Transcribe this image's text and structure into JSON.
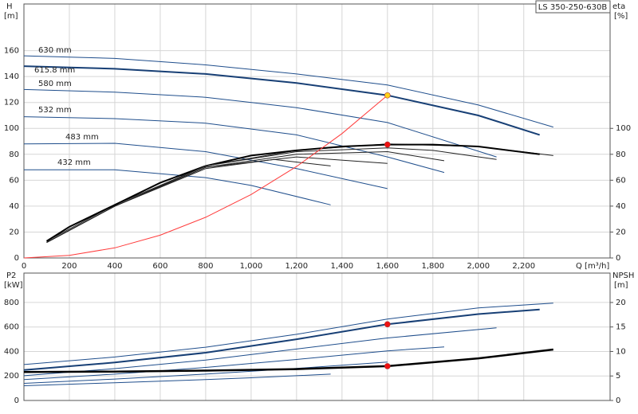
{
  "chart_data": [
    {
      "type": "line",
      "title": "LS 350-250-630B",
      "xlabel": "Q [m³/h]",
      "ylabel": "H",
      "yunit": "[m]",
      "y2label": "eta",
      "y2unit": "[%]",
      "xlim": [
        0,
        2580
      ],
      "xticks": [
        0,
        200,
        400,
        600,
        800,
        {
          "value": 1000,
          "label": "1,000"
        },
        {
          "value": 1200,
          "label": "1,200"
        },
        {
          "value": 1400,
          "label": "1,400"
        },
        {
          "value": 1600,
          "label": "1,600"
        },
        {
          "value": 1800,
          "label": "1,800"
        },
        {
          "value": 2000,
          "label": "2,000"
        },
        {
          "value": 2200,
          "label": "2,200"
        }
      ],
      "ylim": [
        0,
        196
      ],
      "yticks": [
        0,
        20,
        40,
        60,
        80,
        100,
        120,
        140,
        160
      ],
      "y2lim": [
        0,
        196
      ],
      "y2ticks": [
        0,
        20,
        40,
        60,
        80,
        100
      ],
      "grid": true,
      "series": [
        {
          "name": "630 mm",
          "color": "#1f4e8c",
          "x": [
            0,
            400,
            800,
            1200,
            1600,
            2000,
            2330
          ],
          "values": [
            156,
            154,
            149,
            142,
            133.5,
            118,
            101
          ]
        },
        {
          "name": "615.8 mm",
          "color": "#173f75",
          "width": 2,
          "x": [
            0,
            400,
            800,
            1200,
            1600,
            2000,
            2270
          ],
          "values": [
            148,
            146,
            142,
            135,
            125.5,
            110,
            95
          ]
        },
        {
          "name": "580 mm",
          "color": "#1f4e8c",
          "x": [
            0,
            400,
            800,
            1200,
            1600,
            2080
          ],
          "values": [
            130,
            128,
            124,
            116,
            104.5,
            78
          ]
        },
        {
          "name": "532 mm",
          "color": "#1f4e8c",
          "x": [
            0,
            400,
            800,
            1200,
            1600,
            1850
          ],
          "values": [
            109,
            107.5,
            104,
            95,
            78,
            66
          ]
        },
        {
          "name": "483 mm",
          "color": "#1f4e8c",
          "x": [
            0,
            400,
            800,
            1200,
            1600
          ],
          "values": [
            88,
            88.5,
            82,
            69,
            53.5
          ]
        },
        {
          "name": "432 mm",
          "color": "#1f4e8c",
          "x": [
            0,
            400,
            800,
            1000,
            1350
          ],
          "values": [
            68,
            68,
            62,
            56,
            41
          ]
        },
        {
          "color": "#222222",
          "axis": "y2",
          "x": [
            100,
            400,
            800,
            1200,
            1600,
            2000,
            2330
          ],
          "values": [
            13,
            41,
            71,
            83,
            88,
            86,
            79
          ]
        },
        {
          "color": "#000000",
          "axis": "y2",
          "width": 2,
          "x": [
            100,
            200,
            400,
            600,
            800,
            1000,
            1200,
            1400,
            1600,
            1800,
            2000,
            2270
          ],
          "values": [
            13,
            24,
            41,
            58,
            71,
            79,
            83,
            86,
            87.5,
            87.5,
            86,
            80
          ]
        },
        {
          "color": "#222222",
          "axis": "y2",
          "x": [
            100,
            400,
            800,
            1200,
            1600,
            1800,
            2080
          ],
          "values": [
            12,
            40,
            71,
            82,
            85,
            83,
            76
          ]
        },
        {
          "color": "#222222",
          "axis": "y2",
          "x": [
            100,
            400,
            800,
            1200,
            1600,
            1850
          ],
          "values": [
            12,
            40,
            70,
            80,
            82,
            75
          ]
        },
        {
          "color": "#222222",
          "axis": "y2",
          "x": [
            100,
            400,
            800,
            1200,
            1600
          ],
          "values": [
            12,
            40,
            70,
            78,
            73
          ]
        },
        {
          "color": "#222222",
          "axis": "y2",
          "x": [
            100,
            400,
            800,
            1100,
            1350
          ],
          "values": [
            12,
            40,
            69,
            76,
            71
          ]
        },
        {
          "color": "#ff3b3b",
          "x": [
            0,
            200,
            400,
            600,
            800,
            1000,
            1200,
            1400,
            1600
          ],
          "values": [
            0,
            2,
            7.8,
            17.6,
            31.4,
            49,
            70.6,
            96,
            125.5
          ]
        }
      ],
      "points": [
        {
          "x": 1600,
          "y": 125.5,
          "color": "#ffd21a"
        },
        {
          "x": 1600,
          "y": 87.5,
          "color": "#ee1111",
          "axis": "y2"
        }
      ]
    },
    {
      "type": "line",
      "ylabel": "P2",
      "yunit": "[kW]",
      "y2label": "NPSH",
      "y2unit": "[m]",
      "xlim": [
        0,
        2580
      ],
      "xticks": [
        0,
        200,
        400,
        600,
        800,
        1000,
        1200,
        1400,
        1600,
        1800,
        2000,
        2200
      ],
      "xtick_labels": false,
      "ylim": [
        0,
        1040
      ],
      "yticks": [
        0,
        200,
        400,
        600,
        800
      ],
      "y2lim": [
        0,
        26
      ],
      "y2ticks": [
        0,
        5,
        10,
        15,
        20
      ],
      "grid": true,
      "series": [
        {
          "color": "#1f4e8c",
          "x": [
            0,
            400,
            800,
            1200,
            1600,
            2000,
            2330
          ],
          "values": [
            293,
            355,
            435,
            540,
            665,
            756,
            795
          ]
        },
        {
          "color": "#173f75",
          "width": 2,
          "x": [
            0,
            400,
            800,
            1200,
            1600,
            2000,
            2270
          ],
          "values": [
            248,
            310,
            390,
            500,
            622,
            705,
            743
          ]
        },
        {
          "color": "#1f4e8c",
          "x": [
            0,
            400,
            800,
            1200,
            1600,
            2080
          ],
          "values": [
            202,
            260,
            330,
            420,
            510,
            593
          ]
        },
        {
          "color": "#1f4e8c",
          "x": [
            0,
            400,
            800,
            1200,
            1600,
            1850
          ],
          "values": [
            170,
            215,
            270,
            335,
            405,
            437
          ]
        },
        {
          "color": "#1f4e8c",
          "x": [
            0,
            400,
            800,
            1200,
            1600
          ],
          "values": [
            140,
            175,
            215,
            262,
            313
          ]
        },
        {
          "color": "#1f4e8c",
          "x": [
            0,
            400,
            800,
            1000,
            1350
          ],
          "values": [
            120,
            145,
            170,
            185,
            215
          ]
        },
        {
          "color": "#000000",
          "axis": "y2",
          "width": 2.5,
          "x": [
            0,
            400,
            800,
            1200,
            1600,
            2000,
            2330
          ],
          "values": [
            5.8,
            5.9,
            6.1,
            6.4,
            7.0,
            8.6,
            10.4
          ]
        }
      ],
      "points": [
        {
          "x": 1600,
          "y": 622,
          "color": "#ee1111"
        },
        {
          "x": 1600,
          "y": 7.0,
          "color": "#ee1111",
          "axis": "y2"
        }
      ]
    }
  ]
}
